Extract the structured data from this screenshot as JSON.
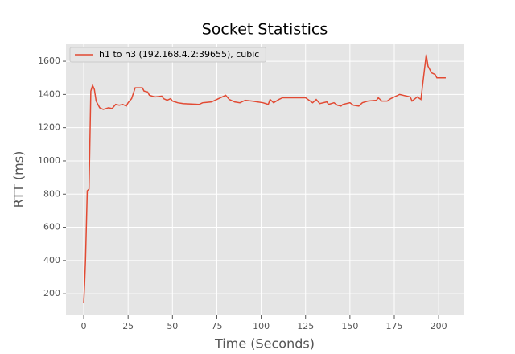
{
  "chart_data": {
    "type": "line",
    "title": "Socket Statistics",
    "x_label": "Time (Seconds)",
    "y_label": "RTT (ms)",
    "x": [
      0,
      0.5,
      1,
      2,
      3,
      4,
      5,
      6,
      7,
      9,
      11,
      14,
      16,
      18,
      20,
      22,
      24,
      25,
      27,
      29,
      33,
      34,
      36,
      37,
      40,
      44,
      45,
      47,
      49,
      50,
      53,
      56,
      65,
      67,
      72,
      75,
      80,
      82,
      85,
      88,
      91,
      95,
      101,
      104,
      105,
      107,
      110,
      112,
      125,
      127,
      129,
      131,
      133,
      137,
      138,
      141,
      143,
      145,
      146,
      150,
      152,
      155,
      157,
      160,
      165,
      166,
      168,
      171,
      173,
      178,
      184,
      185,
      188,
      190,
      193,
      194,
      196,
      198,
      199,
      204
    ],
    "series": [
      {
        "name": "h1 to h3 (192.168.4.2:39655), cubic",
        "color": "#e24a33",
        "values": [
          145,
          260,
          400,
          820,
          830,
          1420,
          1455,
          1430,
          1360,
          1320,
          1310,
          1320,
          1315,
          1340,
          1335,
          1340,
          1330,
          1350,
          1375,
          1440,
          1440,
          1420,
          1415,
          1395,
          1385,
          1390,
          1375,
          1365,
          1375,
          1360,
          1350,
          1345,
          1340,
          1350,
          1355,
          1370,
          1395,
          1370,
          1355,
          1350,
          1365,
          1360,
          1350,
          1340,
          1370,
          1350,
          1370,
          1380,
          1380,
          1365,
          1350,
          1370,
          1345,
          1355,
          1340,
          1350,
          1335,
          1330,
          1340,
          1350,
          1335,
          1330,
          1350,
          1360,
          1365,
          1380,
          1360,
          1360,
          1375,
          1400,
          1385,
          1360,
          1385,
          1370,
          1640,
          1570,
          1530,
          1520,
          1500,
          1500
        ]
      }
    ],
    "xlim": [
      -10,
      214
    ],
    "ylim": [
      70,
      1702
    ],
    "xticks": [
      0,
      25,
      50,
      75,
      100,
      125,
      150,
      175,
      200
    ],
    "yticks": [
      200,
      400,
      600,
      800,
      1000,
      1200,
      1400,
      1600
    ],
    "grid": true,
    "legend": "upper left"
  }
}
